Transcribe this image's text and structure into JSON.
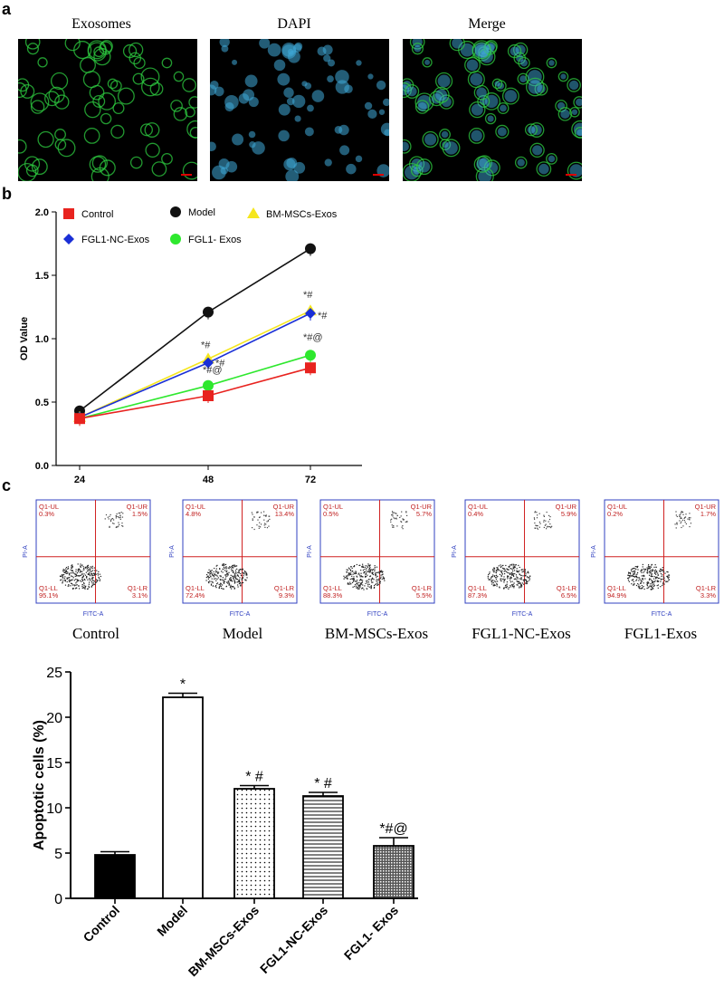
{
  "panel_a": {
    "label": "a",
    "images": [
      {
        "title": "Exosomes",
        "color": "#2ecc40"
      },
      {
        "title": "DAPI",
        "color": "#3fa9d8"
      },
      {
        "title": "Merge",
        "color": "#2ecc40"
      }
    ]
  },
  "panel_b": {
    "label": "b"
  },
  "panel_c": {
    "label": "c",
    "flow_plots": [
      {
        "group": "Control",
        "UL": "Q1-UL\n0.3%",
        "UR": "Q1-UR\n1.5%",
        "LL": "Q1-LL\n95.1%",
        "LR": "Q1-LR\n3.1%"
      },
      {
        "group": "Model",
        "UL": "Q1-UL\n4.8%",
        "UR": "Q1-UR\n13.4%",
        "LL": "Q1-LL\n72.4%",
        "LR": "Q1-LR\n9.3%"
      },
      {
        "group": "BM-MSCs-Exos",
        "UL": "Q1-UL\n0.5%",
        "UR": "Q1-UR\n5.7%",
        "LL": "Q1-LL\n88.3%",
        "LR": "Q1-LR\n5.5%"
      },
      {
        "group": "FGL1-NC-Exos",
        "UL": "Q1-UL\n0.4%",
        "UR": "Q1-UR\n5.9%",
        "LL": "Q1-LL\n87.3%",
        "LR": "Q1-LR\n6.5%"
      },
      {
        "group": "FGL1-Exos",
        "UL": "Q1-UL\n0.2%",
        "UR": "Q1-UR\n1.7%",
        "LL": "Q1-LL\n94.9%",
        "LR": "Q1-LR\n3.3%"
      }
    ],
    "axis_x": "FITC-A",
    "axis_y": "PI-A"
  },
  "chart_data": [
    {
      "type": "line",
      "x": [
        24,
        48,
        72
      ],
      "ylabel": "OD Value",
      "ylim": [
        0.0,
        2.0
      ],
      "yticks": [
        "0.0",
        "0.5",
        "1.0",
        "1.5",
        "2.0"
      ],
      "legend_placement": "top",
      "series": [
        {
          "name": "Control",
          "color": "#e8231f",
          "marker": "square",
          "values": [
            0.37,
            0.55,
            0.77
          ],
          "annotations": [
            "",
            "",
            ""
          ]
        },
        {
          "name": "Model",
          "color": "#111111",
          "marker": "circle",
          "values": [
            0.43,
            1.21,
            1.71
          ],
          "annotations": [
            "",
            "",
            ""
          ]
        },
        {
          "name": "BM-MSCs-Exos",
          "color": "#f5e61e",
          "marker": "triangle",
          "values": [
            0.38,
            0.84,
            1.22
          ],
          "annotations": [
            "",
            "*#",
            "*#"
          ]
        },
        {
          "name": "FGL1-NC-Exos",
          "color": "#1a2fd6",
          "marker": "diamond",
          "values": [
            0.38,
            0.81,
            1.2
          ],
          "annotations": [
            "",
            "*#",
            "*#"
          ]
        },
        {
          "name": "FGL1- Exos",
          "color": "#2ee82e",
          "marker": "circle",
          "values": [
            0.37,
            0.63,
            0.87
          ],
          "annotations": [
            "",
            "*#@",
            "*#@"
          ]
        }
      ]
    },
    {
      "type": "bar",
      "categories": [
        "Control",
        "Model",
        "BM-MSCs-Exos",
        "FGL1-NC-Exos",
        "FGL1- Exos"
      ],
      "values": [
        4.8,
        22.2,
        12.1,
        11.3,
        5.8
      ],
      "errors": [
        0.35,
        0.45,
        0.35,
        0.4,
        0.9
      ],
      "annotations": [
        "",
        "*",
        "* #",
        "* #",
        "*#@"
      ],
      "fills": [
        "solid",
        "open",
        "dots",
        "hlines",
        "dense"
      ],
      "ylabel": "Apoptotic cells (%)",
      "ylim": [
        0,
        25
      ],
      "yticks": [
        "0",
        "5",
        "10",
        "15",
        "20",
        "25"
      ]
    }
  ]
}
